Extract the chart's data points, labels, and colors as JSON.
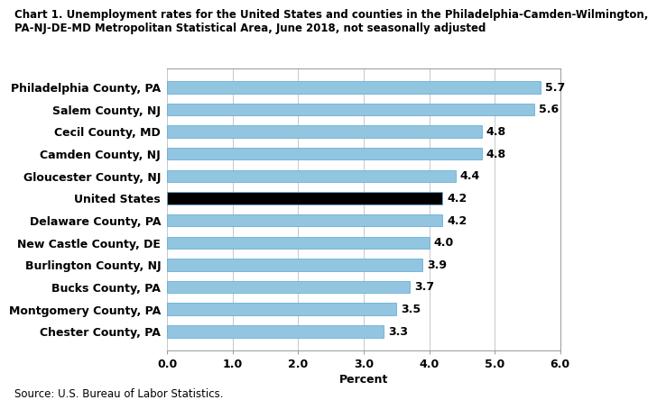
{
  "title_line1": "Chart 1. Unemployment rates for the United States and counties in the Philadelphia-Camden-Wilmington,",
  "title_line2": "PA-NJ-DE-MD Metropolitan Statistical Area, June 2018, not seasonally adjusted",
  "categories": [
    "Chester County, PA",
    "Montgomery County, PA",
    "Bucks County, PA",
    "Burlington County, NJ",
    "New Castle County, DE",
    "Delaware County, PA",
    "United States",
    "Gloucester County, NJ",
    "Camden County, NJ",
    "Cecil County, MD",
    "Salem County, NJ",
    "Philadelphia County, PA"
  ],
  "values": [
    3.3,
    3.5,
    3.7,
    3.9,
    4.0,
    4.2,
    4.2,
    4.4,
    4.8,
    4.8,
    5.6,
    5.7
  ],
  "bar_colors": [
    "#92C5E0",
    "#92C5E0",
    "#92C5E0",
    "#92C5E0",
    "#92C5E0",
    "#92C5E0",
    "#000000",
    "#92C5E0",
    "#92C5E0",
    "#92C5E0",
    "#92C5E0",
    "#92C5E0"
  ],
  "xlim": [
    0.0,
    6.0
  ],
  "xticks": [
    0.0,
    1.0,
    2.0,
    3.0,
    4.0,
    5.0,
    6.0
  ],
  "xtick_labels": [
    "0.0",
    "1.0",
    "2.0",
    "3.0",
    "4.0",
    "5.0",
    "6.0"
  ],
  "xlabel": "Percent",
  "source": "Source: U.S. Bureau of Labor Statistics.",
  "bar_edge_color": "#6aafd4",
  "background_color": "#ffffff",
  "grid_color": "#c8c8c8",
  "title_fontsize": 8.5,
  "label_fontsize": 9,
  "value_fontsize": 9,
  "xlabel_fontsize": 9,
  "source_fontsize": 8.5,
  "bar_height": 0.55
}
